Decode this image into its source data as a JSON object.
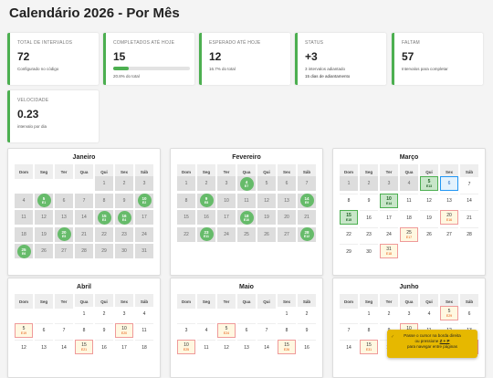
{
  "page": {
    "title": "Calendário 2026 - Por Mês"
  },
  "stats": [
    {
      "label": "TOTAL DE INTERVALOS",
      "value": "72",
      "sub": "Configurado no código"
    },
    {
      "label": "COMPLETADOS ATÉ HOJE",
      "value": "15",
      "sub": "20.8% do total",
      "progress": 0.208
    },
    {
      "label": "ESPERADO ATÉ HOJE",
      "value": "12",
      "sub": "16.7% do total"
    },
    {
      "label": "STATUS",
      "value": "+3",
      "sub": "3 intervalos adiantado",
      "sub2": "15 dias de adiantamento"
    },
    {
      "label": "FALTAM",
      "value": "57",
      "sub": "Intervalos para completar"
    },
    {
      "label": "VELOCIDADE",
      "value": "0.23",
      "sub": "intervalo por dia"
    }
  ],
  "weekdays": [
    "Dom",
    "Seg",
    "Ter",
    "Qua",
    "Qui",
    "Sex",
    "Sáb"
  ],
  "months": [
    {
      "name": "Janeiro",
      "offset": 4,
      "days": 31,
      "weeksShown": 5,
      "cells": {
        "1": "p",
        "2": "p",
        "3": "p",
        "4": "p",
        "5": "c:E1",
        "6": "p",
        "7": "p",
        "8": "p",
        "9": "p",
        "10": "c:E2",
        "11": "p",
        "12": "p",
        "13": "p",
        "14": "p",
        "15": "c:E3",
        "16": "c:E4",
        "17": "p",
        "18": "p",
        "19": "p",
        "20": "c:E5",
        "21": "p",
        "22": "p",
        "23": "p",
        "24": "p",
        "25": "c:E6",
        "26": "p",
        "27": "p",
        "28": "p",
        "29": "p",
        "30": "p",
        "31": "p"
      }
    },
    {
      "name": "Fevereiro",
      "offset": 0,
      "days": 28,
      "weeksShown": 4,
      "cells": {
        "1": "p",
        "2": "p",
        "3": "p",
        "4": "c:E7",
        "5": "p",
        "6": "p",
        "7": "p",
        "8": "p",
        "9": "c:E8",
        "10": "p",
        "11": "p",
        "12": "p",
        "13": "p",
        "14": "c:E9",
        "15": "p",
        "16": "p",
        "17": "p",
        "18": "c:E10",
        "19": "p",
        "20": "p",
        "21": "p",
        "22": "p",
        "23": "c:E11",
        "24": "p",
        "25": "p",
        "26": "p",
        "27": "p",
        "28": "c:E12"
      }
    },
    {
      "name": "Março",
      "offset": 0,
      "days": 31,
      "weeksShown": 5,
      "cells": {
        "1": "p",
        "2": "p",
        "3": "p",
        "4": "p",
        "5": "k:E13",
        "6": "t",
        "10": "k:E14",
        "15": "k:E15",
        "20": "s:E16",
        "25": "s:E17",
        "31": "s:E18"
      }
    },
    {
      "name": "Abril",
      "offset": 3,
      "days": 30,
      "weeksShown": 3,
      "cells": {
        "5": "s:E19",
        "10": "s:E20",
        "15": "s:E21",
        "20": "s:E22",
        "25": "s:E23"
      }
    },
    {
      "name": "Maio",
      "offset": 5,
      "days": 31,
      "weeksShown": 3,
      "cells": {
        "5": "s:E24",
        "10": "s:E25",
        "15": "s:E26",
        "20": "s:E27",
        "25": "s:E28"
      }
    },
    {
      "name": "Junho",
      "offset": 1,
      "days": 30,
      "weeksShown": 3,
      "cells": {
        "5": "s:E29",
        "10": "s:E30",
        "15": "s:E31",
        "20": "s:E32",
        "25": "s:E33"
      }
    }
  ],
  "tooltip": {
    "icon": "✓",
    "line1": "Passe o cursor na borda direita",
    "line2_prefix": "ou pressione ",
    "keys": "Z + P",
    "line3": "para navegar entre páginas"
  }
}
